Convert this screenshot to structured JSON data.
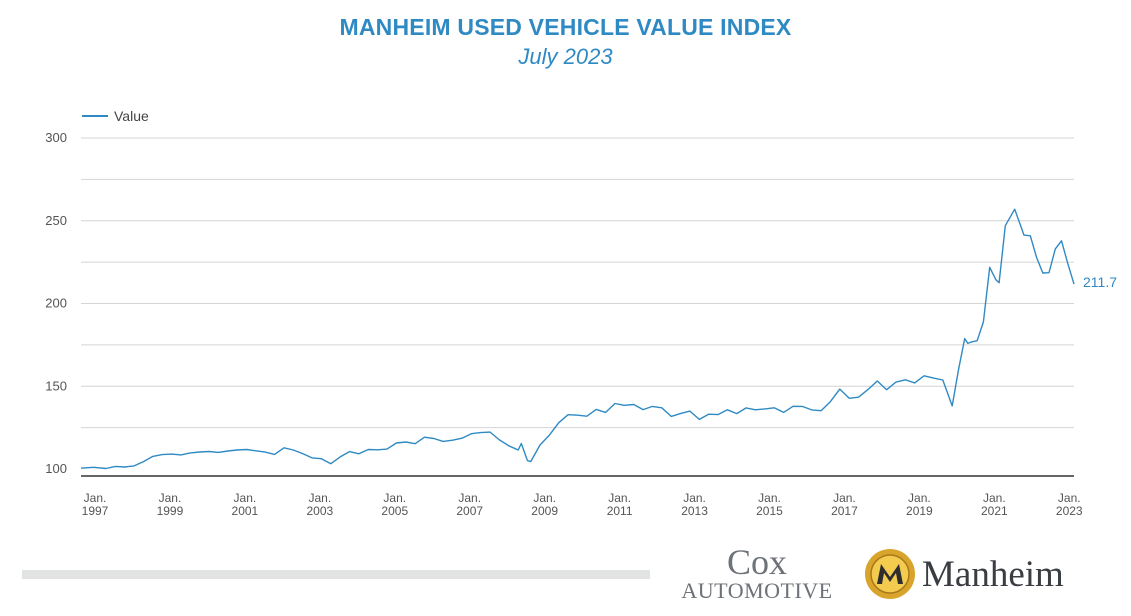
{
  "header": {
    "title": "MANHEIM USED VEHICLE VALUE INDEX",
    "subtitle": "July 2023"
  },
  "legend": {
    "label": "Value"
  },
  "last_value_label": "211.7",
  "logos": {
    "cox_top": "Cox",
    "cox_bottom": "AUTOMOTIVE",
    "manheim": "Manheim"
  },
  "colors": {
    "line": "#2f8ac4",
    "title": "#2f8ac4",
    "grid": "#d4d4d4",
    "axis": "#333333"
  },
  "chart_data": {
    "type": "line",
    "title": "MANHEIM USED VEHICLE VALUE INDEX",
    "subtitle": "July 2023",
    "xlabel": "",
    "ylabel": "",
    "ylim": [
      100,
      300
    ],
    "yticks": [
      100,
      150,
      200,
      250,
      300
    ],
    "grid": true,
    "legend_position": "top-left",
    "xlim": [
      "1997-01",
      "2023-07"
    ],
    "xtick_labels": [
      {
        "date": "1997-01",
        "line1": "Jan.",
        "line2": "1997"
      },
      {
        "date": "1999-01",
        "line1": "Jan.",
        "line2": "1999"
      },
      {
        "date": "2001-01",
        "line1": "Jan.",
        "line2": "2001"
      },
      {
        "date": "2003-01",
        "line1": "Jan.",
        "line2": "2003"
      },
      {
        "date": "2005-01",
        "line1": "Jan.",
        "line2": "2005"
      },
      {
        "date": "2007-01",
        "line1": "Jan.",
        "line2": "2007"
      },
      {
        "date": "2009-01",
        "line1": "Jan.",
        "line2": "2009"
      },
      {
        "date": "2011-01",
        "line1": "Jan.",
        "line2": "2011"
      },
      {
        "date": "2013-01",
        "line1": "Jan.",
        "line2": "2013"
      },
      {
        "date": "2015-01",
        "line1": "Jan.",
        "line2": "2015"
      },
      {
        "date": "2017-01",
        "line1": "Jan.",
        "line2": "2017"
      },
      {
        "date": "2019-01",
        "line1": "Jan.",
        "line2": "2019"
      },
      {
        "date": "2021-01",
        "line1": "Jan.",
        "line2": "2021"
      },
      {
        "date": "2023-01",
        "line1": "Jan.",
        "line2": "2023"
      }
    ],
    "series": [
      {
        "name": "Value",
        "points": [
          [
            "1997-01",
            100.5
          ],
          [
            "1997-05",
            101.0
          ],
          [
            "1997-09",
            100.3
          ],
          [
            "1997-12",
            101.6
          ],
          [
            "1998-03",
            101.2
          ],
          [
            "1998-06",
            101.9
          ],
          [
            "1998-09",
            104.5
          ],
          [
            "1998-12",
            107.6
          ],
          [
            "1999-03",
            108.7
          ],
          [
            "1999-06",
            109.0
          ],
          [
            "1999-09",
            108.5
          ],
          [
            "1999-12",
            109.7
          ],
          [
            "2000-03",
            110.3
          ],
          [
            "2000-06",
            110.6
          ],
          [
            "2000-09",
            110.0
          ],
          [
            "2000-12",
            110.9
          ],
          [
            "2001-03",
            111.5
          ],
          [
            "2001-06",
            111.8
          ],
          [
            "2001-09",
            111.0
          ],
          [
            "2001-12",
            110.2
          ],
          [
            "2002-03",
            108.8
          ],
          [
            "2002-06",
            112.8
          ],
          [
            "2002-09",
            111.5
          ],
          [
            "2002-12",
            109.3
          ],
          [
            "2003-03",
            106.7
          ],
          [
            "2003-06",
            106.2
          ],
          [
            "2003-09",
            103.2
          ],
          [
            "2003-12",
            107.3
          ],
          [
            "2004-03",
            110.5
          ],
          [
            "2004-06",
            109.2
          ],
          [
            "2004-09",
            111.8
          ],
          [
            "2004-12",
            111.6
          ],
          [
            "2005-03",
            112.0
          ],
          [
            "2005-06",
            115.7
          ],
          [
            "2005-09",
            116.3
          ],
          [
            "2005-12",
            115.3
          ],
          [
            "2006-03",
            119.2
          ],
          [
            "2006-06",
            118.4
          ],
          [
            "2006-09",
            116.7
          ],
          [
            "2006-12",
            117.4
          ],
          [
            "2007-03",
            118.6
          ],
          [
            "2007-06",
            121.3
          ],
          [
            "2007-09",
            122.0
          ],
          [
            "2007-12",
            122.3
          ],
          [
            "2008-03",
            117.6
          ],
          [
            "2008-06",
            114.0
          ],
          [
            "2008-09",
            111.5
          ],
          [
            "2008-10",
            115.4
          ],
          [
            "2008-12",
            105.0
          ],
          [
            "2009-01",
            104.5
          ],
          [
            "2009-04",
            114.5
          ],
          [
            "2009-07",
            120.5
          ],
          [
            "2009-10",
            128.0
          ],
          [
            "2010-01",
            132.8
          ],
          [
            "2010-04",
            132.5
          ],
          [
            "2010-07",
            131.9
          ],
          [
            "2010-10",
            136.0
          ],
          [
            "2011-01",
            134.2
          ],
          [
            "2011-04",
            139.6
          ],
          [
            "2011-07",
            138.5
          ],
          [
            "2011-10",
            139.0
          ],
          [
            "2012-01",
            135.9
          ],
          [
            "2012-04",
            137.8
          ],
          [
            "2012-07",
            137.0
          ],
          [
            "2012-10",
            131.8
          ],
          [
            "2013-01",
            133.5
          ],
          [
            "2013-04",
            135.0
          ],
          [
            "2013-07",
            130.0
          ],
          [
            "2013-10",
            133.1
          ],
          [
            "2014-01",
            132.9
          ],
          [
            "2014-04",
            135.8
          ],
          [
            "2014-07",
            133.5
          ],
          [
            "2014-10",
            136.9
          ],
          [
            "2015-01",
            135.8
          ],
          [
            "2015-04",
            136.3
          ],
          [
            "2015-07",
            137.0
          ],
          [
            "2015-10",
            134.2
          ],
          [
            "2016-01",
            137.9
          ],
          [
            "2016-04",
            137.8
          ],
          [
            "2016-07",
            135.7
          ],
          [
            "2016-10",
            135.2
          ],
          [
            "2017-01",
            140.7
          ],
          [
            "2017-04",
            148.3
          ],
          [
            "2017-07",
            142.7
          ],
          [
            "2017-10",
            143.4
          ],
          [
            "2018-01",
            148.0
          ],
          [
            "2018-04",
            153.2
          ],
          [
            "2018-07",
            147.9
          ],
          [
            "2018-10",
            152.5
          ],
          [
            "2019-01",
            153.9
          ],
          [
            "2019-04",
            152.0
          ],
          [
            "2019-07",
            156.3
          ],
          [
            "2019-10",
            154.9
          ],
          [
            "2020-01",
            153.8
          ],
          [
            "2020-04",
            138.1
          ],
          [
            "2020-06",
            160.0
          ],
          [
            "2020-08",
            178.8
          ],
          [
            "2020-09",
            175.9
          ],
          [
            "2020-10",
            176.7
          ],
          [
            "2020-12",
            177.5
          ],
          [
            "2021-02",
            188.9
          ],
          [
            "2021-04",
            221.9
          ],
          [
            "2021-06",
            214.3
          ],
          [
            "2021-07",
            212.5
          ],
          [
            "2021-09",
            247.0
          ],
          [
            "2021-12",
            257.0
          ],
          [
            "2022-03",
            241.3
          ],
          [
            "2022-05",
            240.9
          ],
          [
            "2022-07",
            228.0
          ],
          [
            "2022-09",
            218.4
          ],
          [
            "2022-11",
            218.6
          ],
          [
            "2023-01",
            233.0
          ],
          [
            "2023-03",
            237.9
          ],
          [
            "2023-05",
            224.1
          ],
          [
            "2023-07",
            211.7
          ]
        ]
      }
    ]
  }
}
